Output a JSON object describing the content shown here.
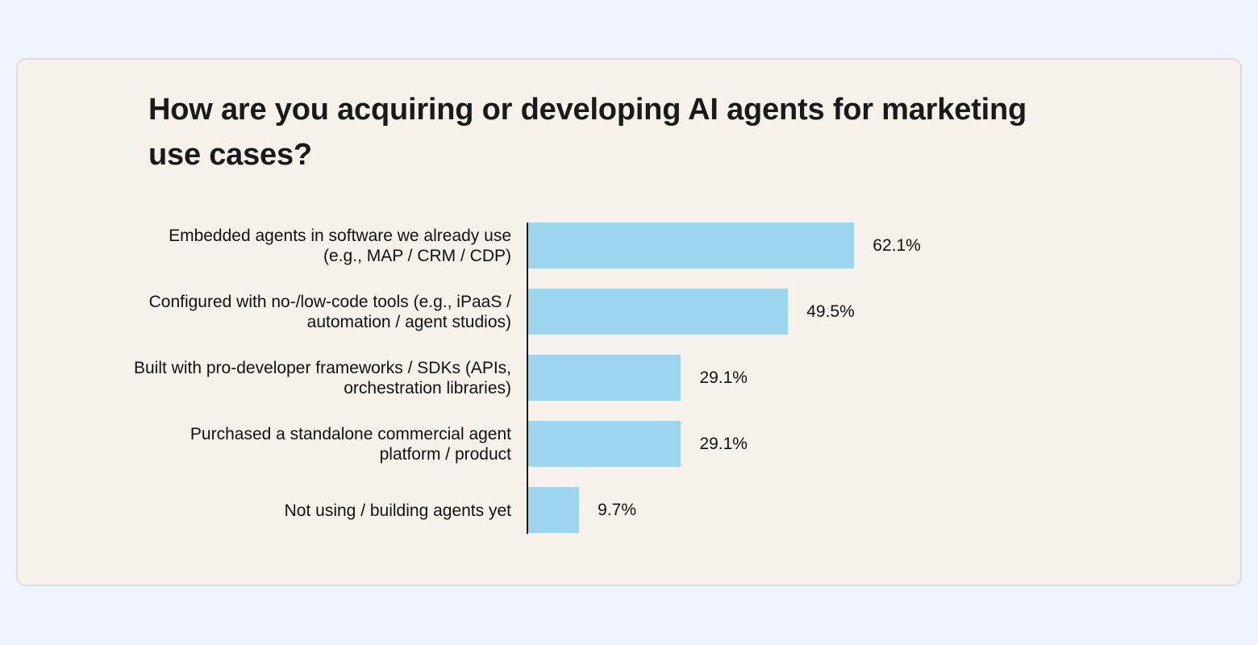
{
  "colors": {
    "page_background": "#f0f4fe",
    "card_background": "#f6f2eb",
    "card_border": "#d9dce8",
    "bar": "#9dd5ef",
    "axis": "#1a1a1a",
    "text": "#1a1a1a"
  },
  "title": "How are you acquiring or developing AI agents for marketing use cases?",
  "chart_data": {
    "type": "bar",
    "orientation": "horizontal",
    "title": "How are you acquiring or developing AI agents for marketing use cases?",
    "xlabel": "",
    "ylabel": "",
    "categories": [
      "Embedded agents in software we already use (e.g., MAP / CRM / CDP)",
      "Configured with no-/low-code tools (e.g., iPaaS / automation / agent studios)",
      "Built with pro-developer frameworks / SDKs (APIs, orchestration libraries)",
      "Purchased a standalone commercial agent platform / product",
      "Not using / building agents yet"
    ],
    "values": [
      62.1,
      49.5,
      29.1,
      29.1,
      9.7
    ],
    "value_labels": [
      "62.1%",
      "49.5%",
      "29.1%",
      "29.1%",
      "9.7%"
    ],
    "unit": "%",
    "xlim": [
      0,
      100
    ],
    "grid": false,
    "legend": null
  },
  "bars": [
    {
      "label": "Embedded agents in software we already use (e.g., MAP / CRM / CDP)",
      "value": 62.1,
      "value_label": "62.1%"
    },
    {
      "label": "Configured with no-/low-code tools (e.g., iPaaS / automation / agent studios)",
      "value": 49.5,
      "value_label": "49.5%"
    },
    {
      "label": "Built with pro-developer frameworks / SDKs (APIs, orchestration libraries)",
      "value": 29.1,
      "value_label": "29.1%"
    },
    {
      "label": "Purchased a standalone commercial agent platform / product",
      "value": 29.1,
      "value_label": "29.1%"
    },
    {
      "label": "Not using / building agents yet",
      "value": 9.7,
      "value_label": "9.7%"
    }
  ]
}
